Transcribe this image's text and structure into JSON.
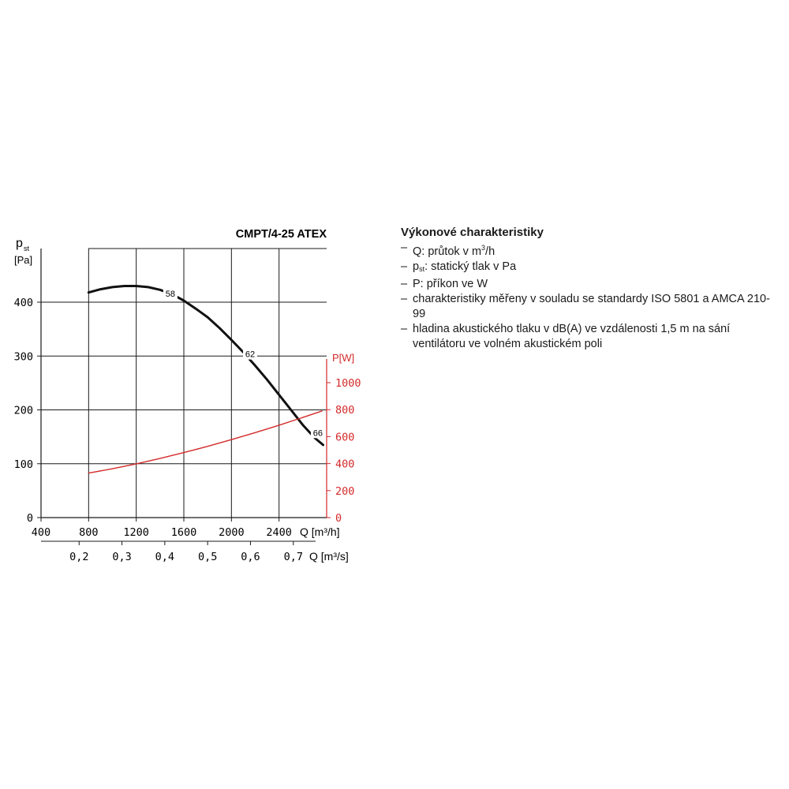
{
  "chart_data": {
    "type": "line",
    "title": "CMPT/4-25 ATEX",
    "xlabel": "Q [m³/h]",
    "x2label": "Q [m³/s]",
    "xlim": [
      400,
      2800
    ],
    "x_ticks": [
      400,
      800,
      1200,
      1600,
      2000,
      2400
    ],
    "x2_ticks": [
      "0,2",
      "0,3",
      "0,4",
      "0,5",
      "0,6",
      "0,7"
    ],
    "x2_ticks_m3h": [
      720,
      1080,
      1440,
      1800,
      2160,
      2520
    ],
    "ylabel_main": "p",
    "ylabel_sub": "st",
    "ylabel_unit": "[Pa]",
    "ylim": [
      0,
      400
    ],
    "y_ticks": [
      0,
      100,
      200,
      300,
      400
    ],
    "y2label": "P[W]",
    "y2lim": [
      0,
      1000
    ],
    "y2_ticks": [
      0,
      200,
      400,
      600,
      800,
      1000
    ],
    "grid": true,
    "series": [
      {
        "name": "",
        "axis": "left",
        "color": "#111111",
        "x": [
          800,
          900,
          1000,
          1100,
          1200,
          1300,
          1400,
          1500,
          1600,
          1700,
          1800,
          1900,
          2000,
          2100,
          2200,
          2300,
          2400,
          2500,
          2600,
          2700,
          2770
        ],
        "y": [
          418,
          424,
          428,
          430,
          430,
          428,
          423,
          415,
          403,
          388,
          372,
          352,
          330,
          307,
          282,
          256,
          228,
          200,
          172,
          148,
          135
        ]
      },
      {
        "name": "",
        "axis": "right",
        "color": "#d42a2a",
        "x": [
          800,
          1000,
          1200,
          1400,
          1600,
          1800,
          2000,
          2200,
          2400,
          2600,
          2760
        ],
        "y": [
          330,
          362,
          398,
          438,
          482,
          528,
          578,
          630,
          685,
          742,
          790
        ]
      }
    ],
    "annotations": [
      {
        "text": "58",
        "x": 1480,
        "y": 410
      },
      {
        "text": "62",
        "x": 2150,
        "y": 298
      },
      {
        "text": "66",
        "x": 2720,
        "y": 152
      }
    ]
  },
  "legend": {
    "title": "Výkonové charakteristiky",
    "dash": "–",
    "items": {
      "q": {
        "pre": "Q: průtok v m",
        "sup": "3",
        "post": "/h"
      },
      "p_st": {
        "pre": "p",
        "sub": "st",
        "post": ": statický tlak v Pa"
      },
      "p": {
        "text": "P: příkon ve W"
      },
      "measured": {
        "text": "charakteristiky měřeny v souladu se standardy ISO 5801 a AMCA 210-99"
      },
      "noise": {
        "text": "hladina akustického tlaku v dB(A) ve vzdálenosti 1,5 m na sání ventilátoru ve volném akustickém poli"
      }
    }
  },
  "colors": {
    "pressure": "#111111",
    "power": "#d42a2a",
    "grid": "#1a1a1a"
  }
}
